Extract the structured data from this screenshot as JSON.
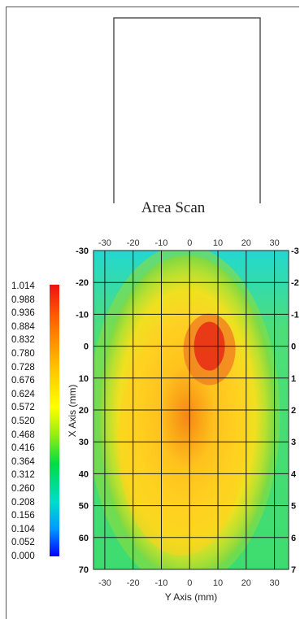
{
  "chart_data": {
    "type": "heatmap",
    "title": "Area Scan",
    "xlabel": "Y Axis (mm)",
    "ylabel": "X Axis (mm)",
    "x_ticks": [
      "-30",
      "-20",
      "-10",
      "0",
      "10",
      "20",
      "30"
    ],
    "y_ticks": [
      "-30",
      "-20",
      "-10",
      "0",
      "10",
      "20",
      "30",
      "40",
      "50",
      "60",
      "70"
    ],
    "right_ticks": [
      "-3",
      "-2",
      "-1",
      "0",
      "1",
      "2",
      "3",
      "4",
      "5",
      "6",
      "7"
    ],
    "xlim": [
      -34,
      35
    ],
    "ylim": [
      -30,
      70
    ],
    "grid": true,
    "colorbar": {
      "labels": [
        "1.014",
        "0.988",
        "0.936",
        "0.884",
        "0.832",
        "0.780",
        "0.728",
        "0.676",
        "0.624",
        "0.572",
        "0.520",
        "0.468",
        "0.416",
        "0.364",
        "0.312",
        "0.260",
        "0.208",
        "0.156",
        "0.104",
        "0.052",
        "0.000"
      ],
      "min": 0.0,
      "max": 1.014,
      "colors": [
        "#0000ff",
        "#00ccff",
        "#00dd66",
        "#44dd22",
        "#ffff00",
        "#ffc000",
        "#ff6000",
        "#ee1111"
      ]
    },
    "peak": {
      "x": 7,
      "y": 0,
      "value": 1.014
    }
  }
}
